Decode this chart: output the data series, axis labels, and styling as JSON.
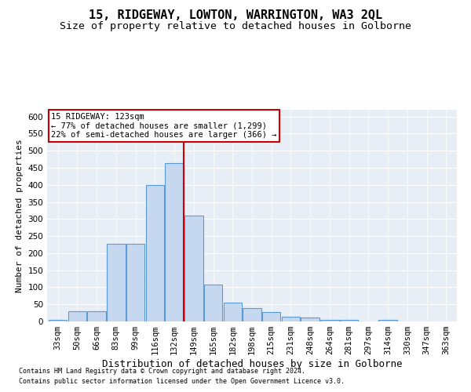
{
  "title": "15, RIDGEWAY, LOWTON, WARRINGTON, WA3 2QL",
  "subtitle": "Size of property relative to detached houses in Golborne",
  "xlabel": "Distribution of detached houses by size in Golborne",
  "ylabel": "Number of detached properties",
  "footnote1": "Contains HM Land Registry data © Crown copyright and database right 2024.",
  "footnote2": "Contains public sector information licensed under the Open Government Licence v3.0.",
  "categories": [
    "33sqm",
    "50sqm",
    "66sqm",
    "83sqm",
    "99sqm",
    "116sqm",
    "132sqm",
    "149sqm",
    "165sqm",
    "182sqm",
    "198sqm",
    "215sqm",
    "231sqm",
    "248sqm",
    "264sqm",
    "281sqm",
    "297sqm",
    "314sqm",
    "330sqm",
    "347sqm",
    "363sqm"
  ],
  "values": [
    5,
    30,
    30,
    228,
    228,
    400,
    465,
    310,
    108,
    55,
    40,
    27,
    13,
    11,
    5,
    5,
    0,
    5,
    0,
    0,
    0
  ],
  "bar_color": "#c5d8f0",
  "bar_edge_color": "#5b9bd5",
  "bar_edge_width": 0.8,
  "vline_color": "#cc0000",
  "annotation_text": "15 RIDGEWAY: 123sqm\n← 77% of detached houses are smaller (1,299)\n22% of semi-detached houses are larger (366) →",
  "annotation_box_color": "#ffffff",
  "annotation_box_edge_color": "#cc0000",
  "ylim": [
    0,
    620
  ],
  "yticks": [
    0,
    50,
    100,
    150,
    200,
    250,
    300,
    350,
    400,
    450,
    500,
    550,
    600
  ],
  "bg_color": "#e8eef5",
  "title_fontsize": 11,
  "subtitle_fontsize": 9.5,
  "ylabel_fontsize": 8,
  "xlabel_fontsize": 9,
  "tick_fontsize": 7.5,
  "footnote_fontsize": 6,
  "ann_fontsize": 7.5
}
